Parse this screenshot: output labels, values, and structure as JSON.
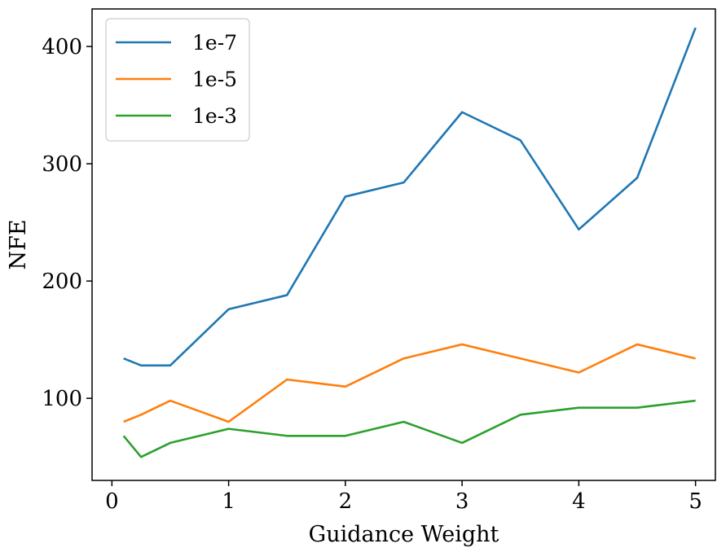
{
  "chart_data": {
    "type": "line",
    "title": "",
    "xlabel": "Guidance Weight",
    "ylabel": "NFE",
    "xlim": [
      -0.17,
      5.17
    ],
    "ylim": [
      30,
      432
    ],
    "xticks": [
      0,
      1,
      2,
      3,
      4,
      5
    ],
    "yticks": [
      100,
      200,
      300,
      400
    ],
    "grid": false,
    "legend_position": "top-left",
    "x": [
      0.1,
      0.25,
      0.5,
      1,
      1.5,
      2,
      2.5,
      3,
      3.5,
      4,
      4.5,
      5
    ],
    "series": [
      {
        "name": "1e-7",
        "color": "#1f77b4",
        "values": [
          134,
          128,
          128,
          176,
          188,
          272,
          284,
          344,
          320,
          244,
          288,
          416
        ]
      },
      {
        "name": "1e-5",
        "color": "#ff7f0e",
        "values": [
          80,
          86,
          98,
          80,
          116,
          110,
          134,
          146,
          134,
          122,
          146,
          134
        ]
      },
      {
        "name": "1e-3",
        "color": "#2ca02c",
        "values": [
          68,
          50,
          62,
          74,
          68,
          68,
          80,
          62,
          86,
          92,
          92,
          98
        ]
      }
    ]
  }
}
